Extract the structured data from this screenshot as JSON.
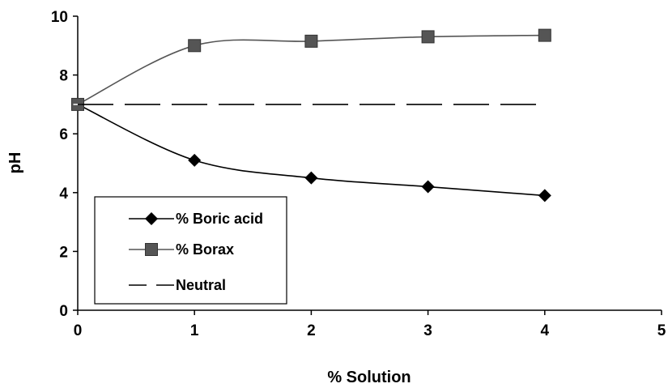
{
  "chart_data": {
    "type": "line",
    "title": "",
    "xlabel": "% Solution",
    "ylabel": "pH",
    "xlim": [
      0,
      5
    ],
    "ylim": [
      0,
      10
    ],
    "xticks": [
      0,
      1,
      2,
      3,
      4,
      5
    ],
    "yticks": [
      0,
      2,
      4,
      6,
      8,
      10
    ],
    "xtick_labels": [
      "0",
      "1",
      "2",
      "3",
      "4",
      "5"
    ],
    "ytick_labels": [
      "0",
      "2",
      "4",
      "6",
      "8",
      "10"
    ],
    "grid": false,
    "legend_position": "bottom-left",
    "x": [
      0,
      1,
      2,
      3,
      4
    ],
    "series": [
      {
        "name": "% Boric acid",
        "values": [
          7.0,
          5.1,
          4.5,
          4.2,
          3.9
        ],
        "marker": "diamond",
        "color": "#000000",
        "line_style": "solid"
      },
      {
        "name": "% Borax",
        "values": [
          7.0,
          9.0,
          9.15,
          9.3,
          9.35
        ],
        "marker": "square",
        "color": "#555555",
        "line_style": "solid"
      },
      {
        "name": "Neutral",
        "values": [
          7.0,
          7.0,
          7.0,
          7.0,
          7.0
        ],
        "marker": "none",
        "color": "#000000",
        "line_style": "dashed"
      }
    ]
  }
}
